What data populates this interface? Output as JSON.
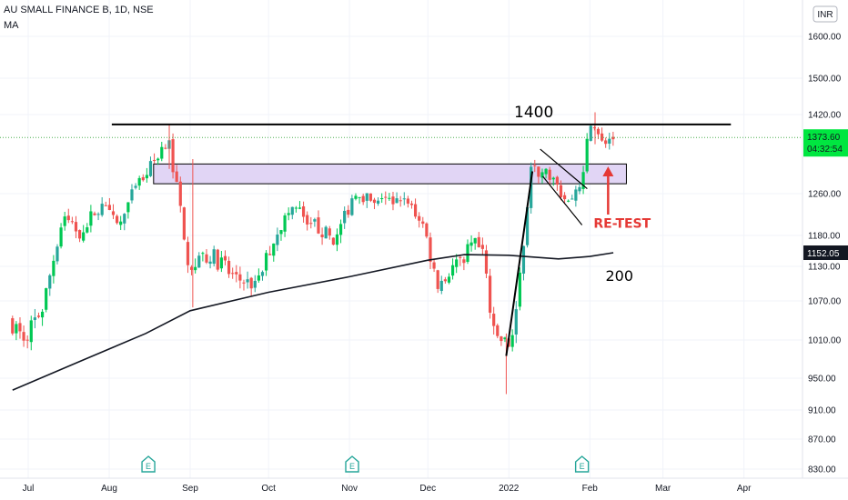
{
  "header": {
    "symbol_line": "AU SMALL FINANCE B, 1D, NSE",
    "indicator": "MA",
    "currency_badge": "INR"
  },
  "colors": {
    "up": "#26a69a",
    "up_bright": "#00c853",
    "down": "#ef5350",
    "ma": "#131722",
    "zone_fill": "#e1d5f5",
    "price_label_bg": "#00e640",
    "ma_label_bg": "#131722",
    "annotation_red": "#e53935",
    "last_price_line": "#4caf50"
  },
  "chart_data": {
    "type": "candlestick",
    "x_ticks": [
      "Jul",
      "Aug",
      "Sep",
      "Oct",
      "Nov",
      "Dec",
      "2022",
      "Feb",
      "Mar",
      "Apr"
    ],
    "y_ticks": [
      "1600.00",
      "1500.00",
      "1420.00",
      "1260.00",
      "1180.00",
      "1130.00",
      "1070.00",
      "1010.00",
      "950.00",
      "910.00",
      "870.00",
      "830.00"
    ],
    "y_tick_values": [
      1600,
      1500,
      1420,
      1260,
      1180,
      1130,
      1070,
      1010,
      950,
      910,
      870,
      830
    ],
    "last_price": "1373.60",
    "countdown": "04:32:54",
    "ma_value_label": "1152.05",
    "ma_value": 1152.05,
    "resistance_level": 1400,
    "support_zone": [
      1280,
      1320
    ],
    "annotations": {
      "resistance_label": "1400",
      "retest_label": "RE-TEST",
      "ma_label": "200"
    },
    "earnings_markers": [
      "E",
      "E",
      "E"
    ],
    "trend_moves": [
      {
        "from": "2021-12-30",
        "to": "2022-01-11",
        "kind": "breakout"
      },
      {
        "from": "2022-01-11",
        "to": "2022-01-28",
        "kind": "down-channel"
      }
    ],
    "ma_points": [
      {
        "date": "2021-06-25",
        "value": 935
      },
      {
        "date": "2021-07-20",
        "value": 975
      },
      {
        "date": "2021-08-15",
        "value": 1020
      },
      {
        "date": "2021-09-01",
        "value": 1055
      },
      {
        "date": "2021-10-01",
        "value": 1085
      },
      {
        "date": "2021-11-01",
        "value": 1112
      },
      {
        "date": "2021-12-01",
        "value": 1140
      },
      {
        "date": "2021-12-15",
        "value": 1149
      },
      {
        "date": "2022-01-01",
        "value": 1148
      },
      {
        "date": "2022-01-20",
        "value": 1142
      },
      {
        "date": "2022-02-01",
        "value": 1146
      },
      {
        "date": "2022-02-10",
        "value": 1152
      }
    ],
    "price_path": [
      {
        "date": "2021-06-25",
        "value": 1040
      },
      {
        "date": "2021-07-01",
        "value": 1015
      },
      {
        "date": "2021-07-08",
        "value": 1060
      },
      {
        "date": "2021-07-16",
        "value": 1220
      },
      {
        "date": "2021-07-22",
        "value": 1185
      },
      {
        "date": "2021-07-30",
        "value": 1240
      },
      {
        "date": "2021-08-06",
        "value": 1195
      },
      {
        "date": "2021-08-12",
        "value": 1265
      },
      {
        "date": "2021-08-19",
        "value": 1320
      },
      {
        "date": "2021-08-25",
        "value": 1375
      },
      {
        "date": "2021-08-27",
        "value": 1310
      },
      {
        "date": "2021-09-02",
        "value": 1130
      },
      {
        "date": "2021-09-10",
        "value": 1150
      },
      {
        "date": "2021-09-20",
        "value": 1110
      },
      {
        "date": "2021-09-28",
        "value": 1095
      },
      {
        "date": "2021-10-05",
        "value": 1185
      },
      {
        "date": "2021-10-12",
        "value": 1235
      },
      {
        "date": "2021-10-20",
        "value": 1200
      },
      {
        "date": "2021-10-28",
        "value": 1170
      },
      {
        "date": "2021-11-05",
        "value": 1270
      },
      {
        "date": "2021-11-12",
        "value": 1235
      },
      {
        "date": "2021-11-22",
        "value": 1255
      },
      {
        "date": "2021-11-30",
        "value": 1210
      },
      {
        "date": "2021-12-06",
        "value": 1100
      },
      {
        "date": "2021-12-12",
        "value": 1130
      },
      {
        "date": "2021-12-20",
        "value": 1165
      },
      {
        "date": "2021-12-24",
        "value": 1150
      },
      {
        "date": "2021-12-27",
        "value": 1020
      },
      {
        "date": "2022-01-03",
        "value": 1000
      },
      {
        "date": "2022-01-06",
        "value": 1080
      },
      {
        "date": "2022-01-11",
        "value": 1310
      },
      {
        "date": "2022-01-18",
        "value": 1300
      },
      {
        "date": "2022-01-25",
        "value": 1240
      },
      {
        "date": "2022-01-31",
        "value": 1295
      },
      {
        "date": "2022-02-02",
        "value": 1400
      },
      {
        "date": "2022-02-04",
        "value": 1395
      },
      {
        "date": "2022-02-07",
        "value": 1360
      },
      {
        "date": "2022-02-10",
        "value": 1374
      }
    ]
  }
}
